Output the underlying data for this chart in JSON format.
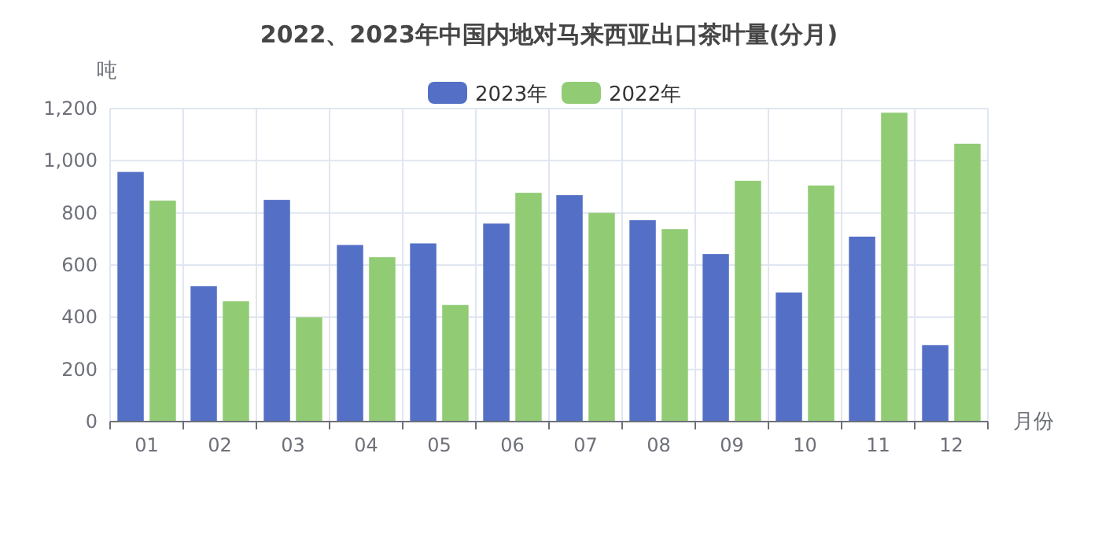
{
  "chart_data": {
    "type": "bar",
    "title": "2022、2023年中国内地对马来西亚出口茶叶量(分月)",
    "xlabel": "月份",
    "ylabel": "吨",
    "categories": [
      "01",
      "02",
      "03",
      "04",
      "05",
      "06",
      "07",
      "08",
      "09",
      "10",
      "11",
      "12"
    ],
    "series": [
      {
        "name": "2023年",
        "color": "#5470c6",
        "values": [
          957,
          519,
          850,
          677,
          683,
          759,
          868,
          772,
          642,
          495,
          709,
          293
        ]
      },
      {
        "name": "2022年",
        "color": "#91cc75",
        "values": [
          847,
          461,
          400,
          630,
          447,
          877,
          800,
          738,
          923,
          905,
          1184,
          1065
        ]
      }
    ],
    "ylim": [
      0,
      1200
    ],
    "yticks": [
      {
        "value": 0,
        "label": "0"
      },
      {
        "value": 200,
        "label": "200"
      },
      {
        "value": 400,
        "label": "400"
      },
      {
        "value": 600,
        "label": "600"
      },
      {
        "value": 800,
        "label": "800"
      },
      {
        "value": 1000,
        "label": "1,000"
      },
      {
        "value": 1200,
        "label": "1,200"
      }
    ],
    "grid": true,
    "legend": "top"
  }
}
